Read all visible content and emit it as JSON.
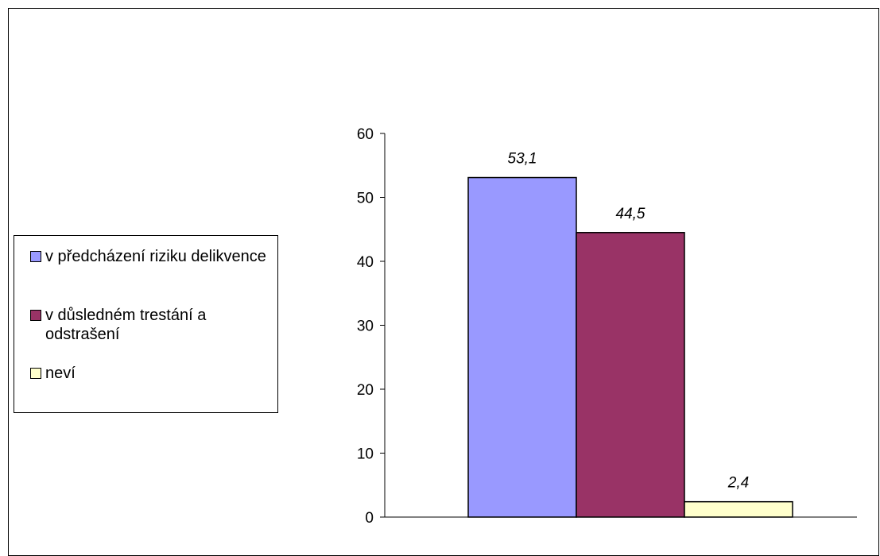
{
  "chart_data": {
    "type": "bar",
    "categories": [
      ""
    ],
    "series": [
      {
        "name": "v předcházení riziku delikvence",
        "values": [
          53.1
        ],
        "label": "53,1",
        "color": "#9999ff"
      },
      {
        "name": "v důsledném trestání a odstrašení",
        "values": [
          44.5
        ],
        "label": "44,5",
        "color": "#993366"
      },
      {
        "name": "neví",
        "values": [
          2.4
        ],
        "label": "2,4",
        "color": "#ffffcc"
      }
    ],
    "y_ticks": [
      "0",
      "10",
      "20",
      "30",
      "40",
      "50",
      "60"
    ],
    "ylim": [
      0,
      60
    ],
    "grid": false,
    "legend": "left",
    "title": "",
    "xlabel": "",
    "ylabel": ""
  }
}
